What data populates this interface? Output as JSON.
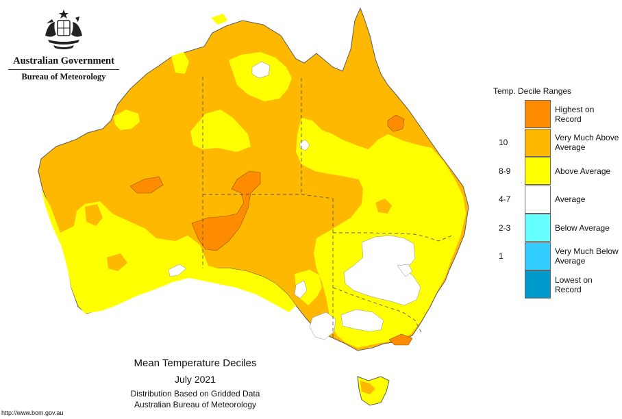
{
  "header": {
    "title": "Australian Government",
    "subtitle": "Bureau of Meteorology"
  },
  "legend": {
    "title": "Temp. Decile Ranges",
    "items": [
      {
        "code": "",
        "label": "Highest on Record",
        "color": "#ff8c00"
      },
      {
        "code": "10",
        "label": "Very Much Above Average",
        "color": "#ffb800"
      },
      {
        "code": "8-9",
        "label": "Above Average",
        "color": "#ffff00"
      },
      {
        "code": "4-7",
        "label": "Average",
        "color": "#ffffff"
      },
      {
        "code": "2-3",
        "label": "Below Average",
        "color": "#66ffff"
      },
      {
        "code": "1",
        "label": "Very Much Below Average",
        "color": "#33ccff"
      },
      {
        "code": "",
        "label": "Lowest on Record",
        "color": "#0099cc"
      }
    ]
  },
  "caption": {
    "title": "Mean Temperature Deciles",
    "date": "July 2021",
    "line1": "Distribution Based on Gridded Data",
    "line2": "Australian Bureau of Meteorology"
  },
  "footer": {
    "url": "http://www.bom.gov.au"
  },
  "map": {
    "border_color": "#5a5a5a",
    "boundary_color": "#555555"
  }
}
